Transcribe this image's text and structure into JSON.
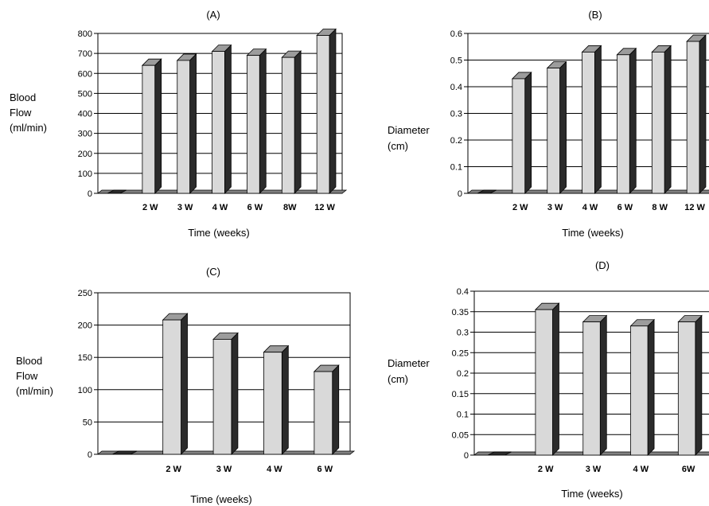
{
  "chart_data": [
    {
      "type": "bar",
      "title": "(A)",
      "xlabel": "Time (weeks)",
      "ylabel": [
        "Blood",
        "Flow",
        "(ml/min)"
      ],
      "ylim": [
        0,
        800
      ],
      "yticks": [
        0,
        100,
        200,
        300,
        400,
        500,
        600,
        700,
        800
      ],
      "categories": [
        "",
        "2 W",
        "3 W",
        "4 W",
        "6 W",
        "8W",
        "12 W"
      ],
      "values": [
        0,
        640,
        665,
        710,
        690,
        680,
        790
      ],
      "grid": true,
      "legend": "none"
    },
    {
      "type": "bar",
      "title": "(B)",
      "xlabel": "Time (weeks)",
      "ylabel": [
        "Diameter",
        "(cm)"
      ],
      "ylim": [
        0,
        0.6
      ],
      "yticks": [
        "0",
        "0.1",
        "0.2",
        "0.3",
        "0.4",
        "0.5",
        "0.6"
      ],
      "categories": [
        "",
        "2 W",
        "3 W",
        "4 W",
        "6 W",
        "8 W",
        "12 W"
      ],
      "values": [
        0,
        0.43,
        0.47,
        0.53,
        0.52,
        0.53,
        0.57
      ],
      "grid": true,
      "legend": "none"
    },
    {
      "type": "bar",
      "title": "(C)",
      "xlabel": "Time (weeks)",
      "ylabel": [
        "Blood",
        "Flow",
        "(ml/min)"
      ],
      "ylim": [
        0,
        250
      ],
      "yticks": [
        0,
        50,
        100,
        150,
        200,
        250
      ],
      "categories": [
        "",
        "2 W",
        "3 W",
        "4 W",
        "6 W"
      ],
      "values": [
        0,
        208,
        178,
        158,
        128
      ],
      "grid": true,
      "legend": "none"
    },
    {
      "type": "bar",
      "title": "(D)",
      "xlabel": "Time (weeks)",
      "ylabel": [
        "Diameter",
        "(cm)"
      ],
      "ylim": [
        0,
        0.4
      ],
      "yticks": [
        "0",
        "0.05",
        "0.1",
        "0.15",
        "0.2",
        "0.25",
        "0.3",
        "0.35",
        "0.4"
      ],
      "categories": [
        "",
        "2 W",
        "3 W",
        "4 W",
        "6W"
      ],
      "values": [
        0,
        0.355,
        0.325,
        0.315,
        0.325
      ],
      "grid": true,
      "legend": "none"
    }
  ],
  "colors": {
    "bar_face": "#d9d9d9",
    "bar_side": "#2b2b2b",
    "bar_top": "#9c9c9c",
    "plot_bg": "#ffffff",
    "gridline": "#000000",
    "floor": "#808080"
  }
}
